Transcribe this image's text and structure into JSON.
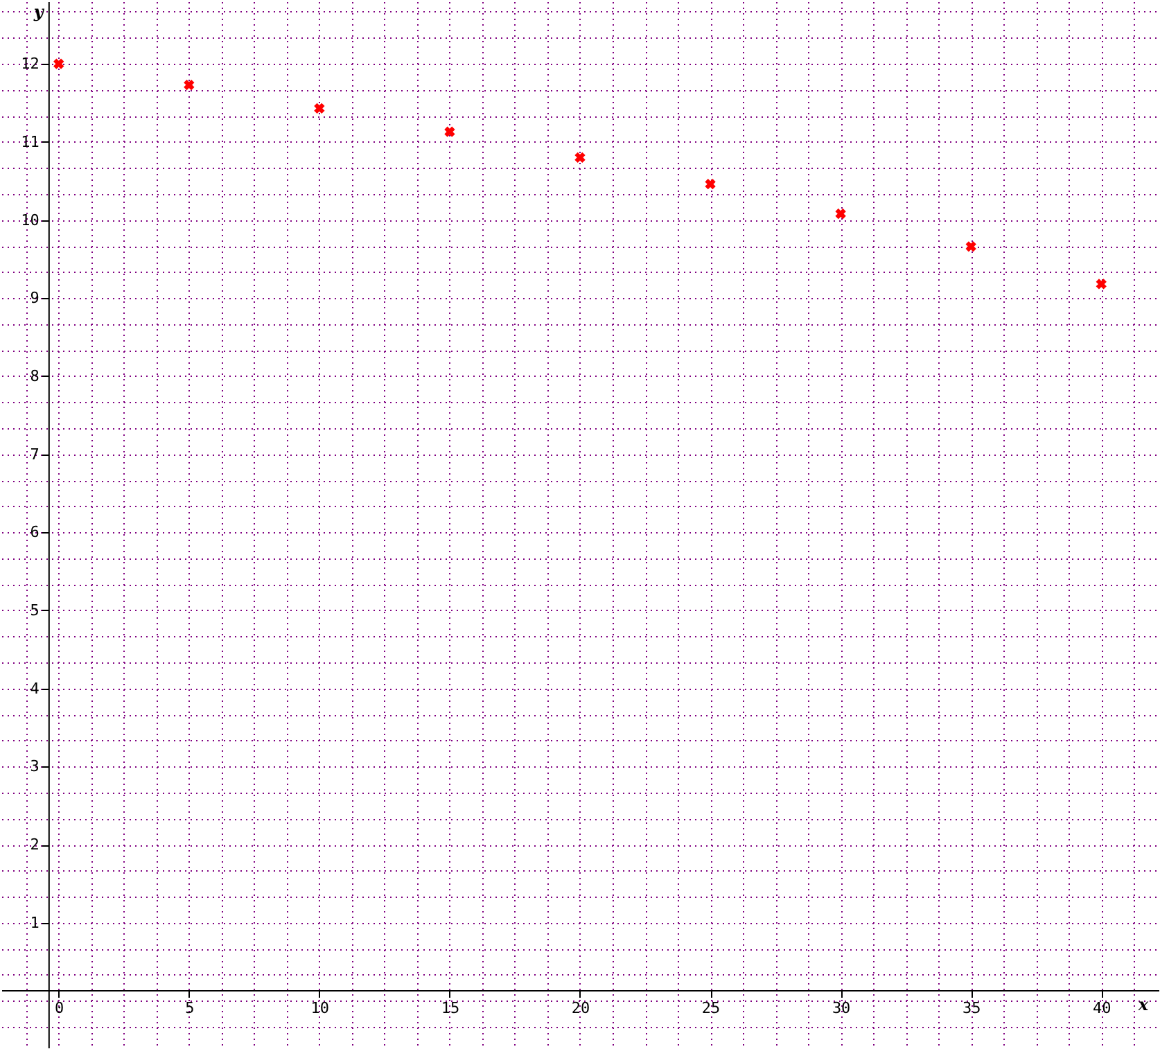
{
  "chart_data": {
    "type": "scatter",
    "xlabel": "x",
    "ylabel": "y",
    "x": [
      0,
      5,
      10,
      15,
      20,
      25,
      30,
      35,
      40
    ],
    "series": [
      {
        "color": "#ff0000",
        "values": [
          12.0,
          11.73,
          11.43,
          11.13,
          10.8,
          10.46,
          10.08,
          9.66,
          9.18
        ]
      }
    ],
    "xlim": [
      -2.2,
      42.2
    ],
    "ylim": [
      -0.6,
      12.8
    ],
    "xticks": [
      {
        "value": -1.25,
        "label": null
      },
      0,
      {
        "value": 1.25,
        "label": null
      },
      {
        "value": 2.5,
        "label": null
      },
      {
        "value": 3.75,
        "label": null
      },
      5,
      {
        "value": 6.25,
        "label": null
      },
      {
        "value": 7.5,
        "label": null
      },
      {
        "value": 8.75,
        "label": null
      },
      10,
      {
        "value": 11.25,
        "label": null
      },
      {
        "value": 12.5,
        "label": null
      },
      {
        "value": 13.75,
        "label": null
      },
      15,
      {
        "value": 16.25,
        "label": null
      },
      {
        "value": 17.5,
        "label": null
      },
      {
        "value": 18.75,
        "label": null
      },
      20,
      {
        "value": 21.25,
        "label": null
      },
      {
        "value": 22.5,
        "label": null
      },
      {
        "value": 23.75,
        "label": null
      },
      25,
      {
        "value": 26.25,
        "label": null
      },
      {
        "value": 27.5,
        "label": null
      },
      {
        "value": 28.75,
        "label": null
      },
      30,
      {
        "value": 31.25,
        "label": null
      },
      {
        "value": 32.5,
        "label": null
      },
      {
        "value": 33.75,
        "label": null
      },
      35,
      {
        "value": 36.25,
        "label": null
      },
      {
        "value": 37.5,
        "label": null
      },
      {
        "value": 38.75,
        "label": null
      },
      40,
      {
        "value": 41.25,
        "label": null
      }
    ],
    "yticks": [
      {
        "value": -0.333,
        "label": null
      },
      {
        "value": 0,
        "label": null
      },
      {
        "value": 0.333,
        "label": null
      },
      {
        "value": 0.667,
        "label": null
      },
      1,
      {
        "value": 1.333,
        "label": null
      },
      {
        "value": 1.667,
        "label": null
      },
      2,
      {
        "value": 2.333,
        "label": null
      },
      {
        "value": 2.667,
        "label": null
      },
      3,
      {
        "value": 3.333,
        "label": null
      },
      {
        "value": 3.667,
        "label": null
      },
      4,
      {
        "value": 4.333,
        "label": null
      },
      {
        "value": 4.667,
        "label": null
      },
      5,
      {
        "value": 5.333,
        "label": null
      },
      {
        "value": 5.667,
        "label": null
      },
      6,
      {
        "value": 6.333,
        "label": null
      },
      {
        "value": 6.667,
        "label": null
      },
      7,
      {
        "value": 7.333,
        "label": null
      },
      {
        "value": 7.667,
        "label": null
      },
      8,
      {
        "value": 8.333,
        "label": null
      },
      {
        "value": 8.667,
        "label": null
      },
      9,
      {
        "value": 9.333,
        "label": null
      },
      {
        "value": 9.667,
        "label": null
      },
      10,
      {
        "value": 10.333,
        "label": null
      },
      {
        "value": 10.667,
        "label": null
      },
      11,
      {
        "value": 11.333,
        "label": null
      },
      {
        "value": 11.667,
        "label": null
      },
      12,
      {
        "value": 12.333,
        "label": null
      },
      {
        "value": 12.667,
        "label": null
      }
    ],
    "grid": true,
    "marker": "cross"
  }
}
